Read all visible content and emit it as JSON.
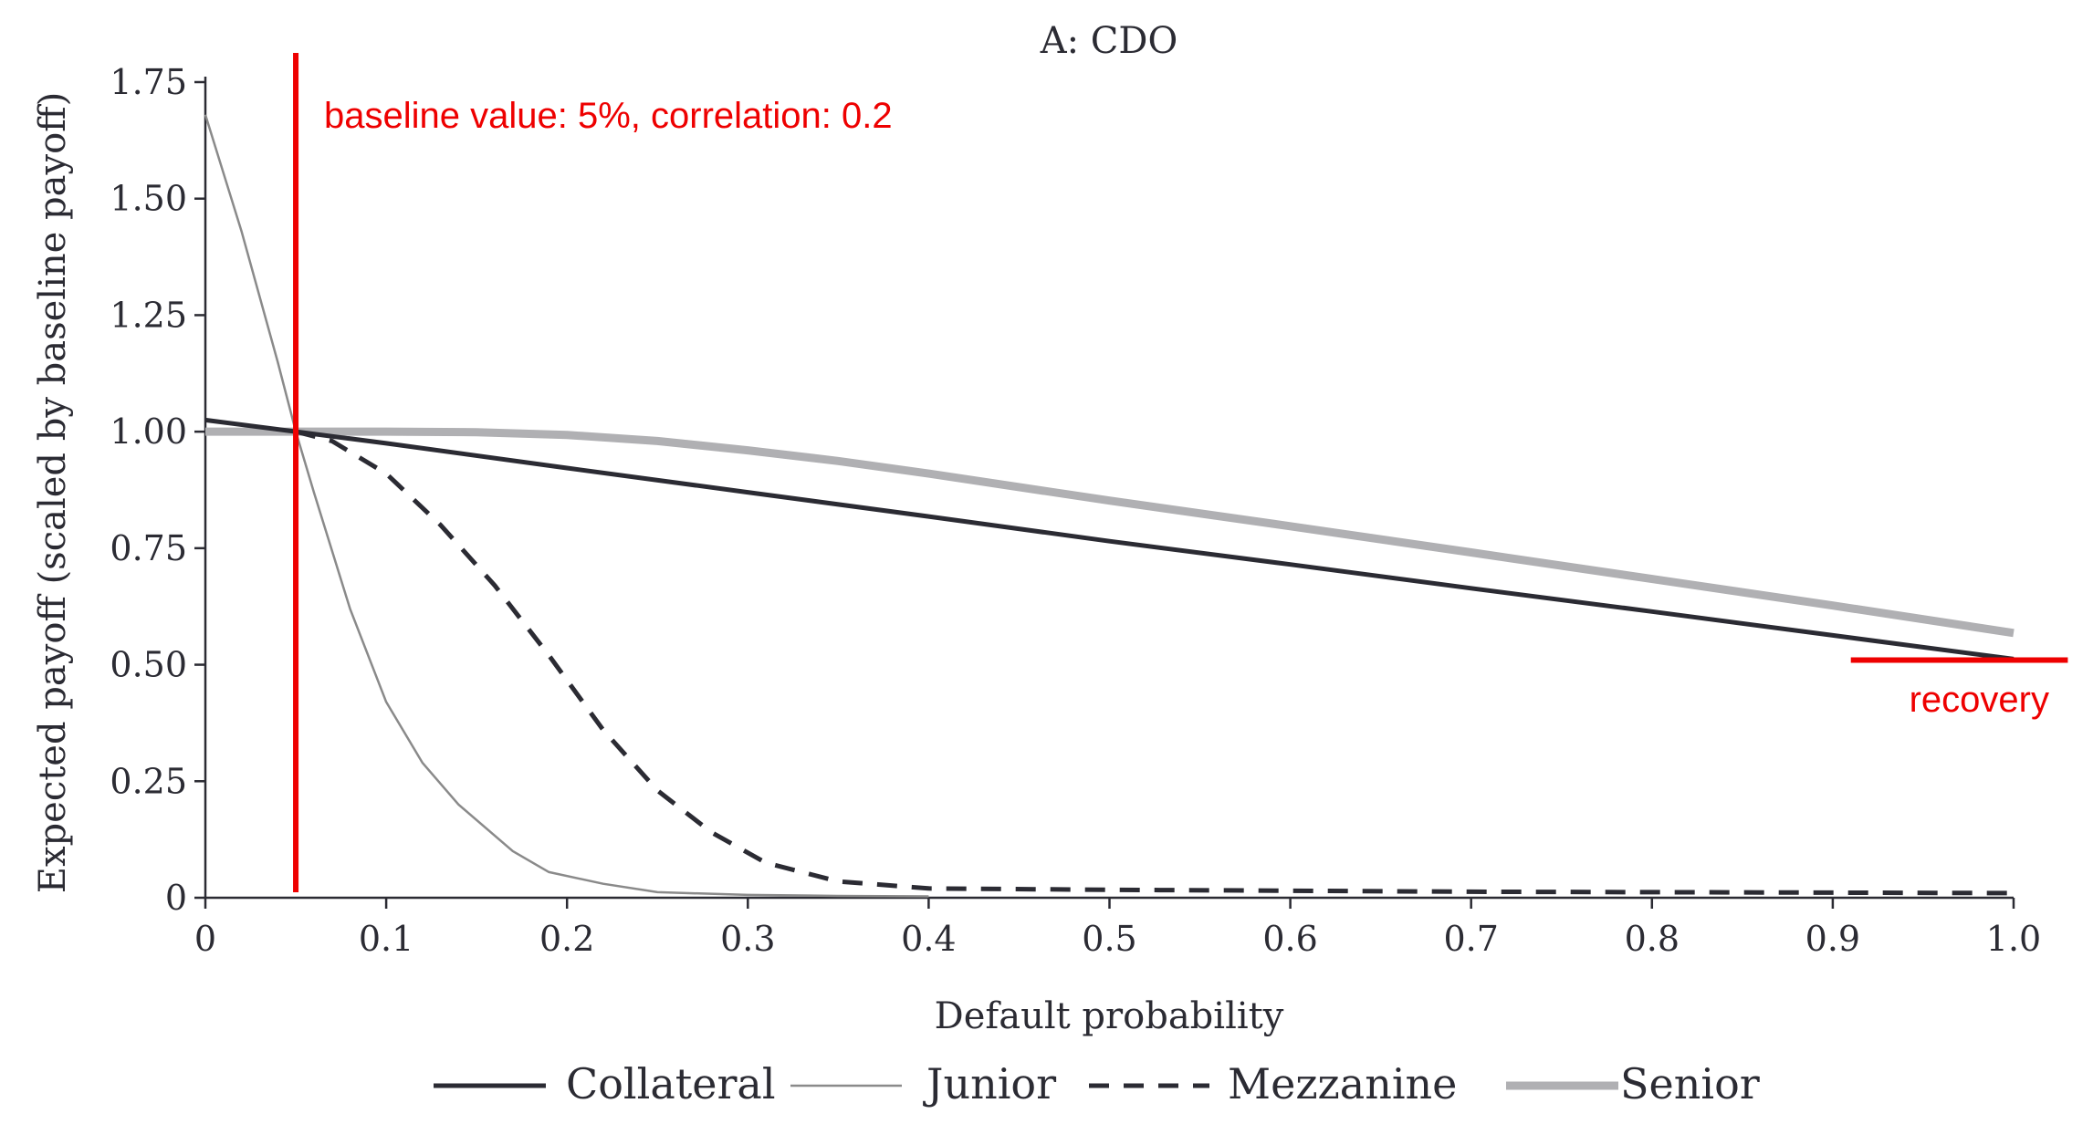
{
  "chart_data": {
    "type": "line",
    "title": "A: CDO",
    "xlabel": "Default probability",
    "ylabel": "Expected payoff (scaled by baseline payoff)",
    "xlim": [
      0,
      1.0
    ],
    "ylim": [
      0,
      1.75
    ],
    "xticks": [
      "0",
      "0.1",
      "0.2",
      "0.3",
      "0.4",
      "0.5",
      "0.6",
      "0.7",
      "0.8",
      "0.9",
      "1.0"
    ],
    "yticks": [
      "0",
      "0.25",
      "0.50",
      "0.75",
      "1.00",
      "1.25",
      "1.50",
      "1.75"
    ],
    "legend_position": "bottom",
    "series": [
      {
        "name": "Collateral",
        "color": "#2b2b33",
        "style": "solid",
        "x": [
          0,
          0.05,
          0.1,
          0.2,
          0.3,
          0.4,
          0.5,
          0.6,
          0.7,
          0.8,
          0.9,
          1.0
        ],
        "y": [
          1.025,
          1.0,
          0.975,
          0.922,
          0.87,
          0.818,
          0.765,
          0.715,
          0.664,
          0.614,
          0.563,
          0.512
        ]
      },
      {
        "name": "Junior",
        "color": "#8a8a8a",
        "style": "thin",
        "x": [
          0,
          0.02,
          0.04,
          0.05,
          0.06,
          0.08,
          0.1,
          0.12,
          0.14,
          0.17,
          0.19,
          0.22,
          0.25,
          0.3,
          0.35,
          0.4
        ],
        "y": [
          1.68,
          1.43,
          1.15,
          1.0,
          0.87,
          0.62,
          0.42,
          0.29,
          0.2,
          0.1,
          0.055,
          0.03,
          0.012,
          0.006,
          0.004,
          0.003
        ]
      },
      {
        "name": "Mezzanine",
        "color": "#2b2b33",
        "style": "dashed",
        "x": [
          0.05,
          0.07,
          0.1,
          0.13,
          0.16,
          0.19,
          0.22,
          0.25,
          0.28,
          0.31,
          0.35,
          0.4,
          0.5,
          0.6,
          0.7,
          0.8,
          0.9,
          1.0
        ],
        "y": [
          1.0,
          0.98,
          0.91,
          0.8,
          0.67,
          0.52,
          0.36,
          0.23,
          0.14,
          0.075,
          0.035,
          0.02,
          0.017,
          0.015,
          0.013,
          0.012,
          0.011,
          0.01
        ]
      },
      {
        "name": "Senior",
        "color": "#b0b0b3",
        "style": "thick",
        "x": [
          0,
          0.05,
          0.1,
          0.15,
          0.2,
          0.25,
          0.3,
          0.35,
          0.4,
          0.5,
          0.6,
          0.7,
          0.8,
          0.9,
          1.0
        ],
        "y": [
          1.0,
          1.0,
          1.0,
          0.999,
          0.993,
          0.98,
          0.96,
          0.937,
          0.91,
          0.852,
          0.797,
          0.741,
          0.684,
          0.627,
          0.568
        ]
      }
    ],
    "annotations": [
      {
        "text": "baseline value: 5%, correlation: 0.2",
        "color": "#ee0000",
        "vline_x": 0.05
      },
      {
        "text": "recovery",
        "color": "#ee0000",
        "hline_y": 0.51,
        "x_range": [
          0.91,
          1.03
        ]
      }
    ]
  }
}
